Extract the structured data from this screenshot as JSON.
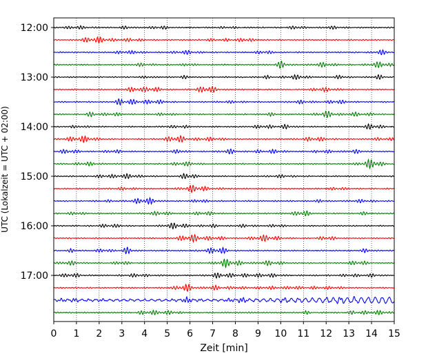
{
  "chart_data": {
    "type": "line",
    "title": "",
    "xlabel": "Zeit  [min]",
    "ylabel": "UTC (Lokalzeit = UTC + 02:00)",
    "xlim": [
      0,
      15
    ],
    "x_ticks": [
      "0",
      "1",
      "2",
      "3",
      "4",
      "5",
      "6",
      "7",
      "8",
      "9",
      "10",
      "11",
      "12",
      "13",
      "14",
      "15"
    ],
    "y_ticks": [
      "12:00",
      "13:00",
      "14:00",
      "15:00",
      "16:00",
      "17:00"
    ],
    "grid": "vertical dotted lines at each minute",
    "legend": "none",
    "trace_interval_minutes": 15,
    "trace_colors": [
      "#000000",
      "#ff0000",
      "#0000ff",
      "#008000"
    ],
    "traces": [
      {
        "start": "12:00",
        "color": "#000000"
      },
      {
        "start": "12:15",
        "color": "#ff0000"
      },
      {
        "start": "12:30",
        "color": "#0000ff"
      },
      {
        "start": "12:45",
        "color": "#008000"
      },
      {
        "start": "13:00",
        "color": "#000000"
      },
      {
        "start": "13:15",
        "color": "#ff0000"
      },
      {
        "start": "13:30",
        "color": "#0000ff"
      },
      {
        "start": "13:45",
        "color": "#008000"
      },
      {
        "start": "14:00",
        "color": "#000000"
      },
      {
        "start": "14:15",
        "color": "#ff0000"
      },
      {
        "start": "14:30",
        "color": "#0000ff"
      },
      {
        "start": "14:45",
        "color": "#008000"
      },
      {
        "start": "15:00",
        "color": "#000000"
      },
      {
        "start": "15:15",
        "color": "#ff0000"
      },
      {
        "start": "15:30",
        "color": "#0000ff"
      },
      {
        "start": "15:45",
        "color": "#008000"
      },
      {
        "start": "16:00",
        "color": "#000000"
      },
      {
        "start": "16:15",
        "color": "#ff0000"
      },
      {
        "start": "16:30",
        "color": "#0000ff"
      },
      {
        "start": "16:45",
        "color": "#008000"
      },
      {
        "start": "17:00",
        "color": "#000000"
      },
      {
        "start": "17:15",
        "color": "#ff0000"
      },
      {
        "start": "17:30",
        "color": "#0000ff"
      },
      {
        "start": "17:45",
        "color": "#008000"
      }
    ]
  }
}
